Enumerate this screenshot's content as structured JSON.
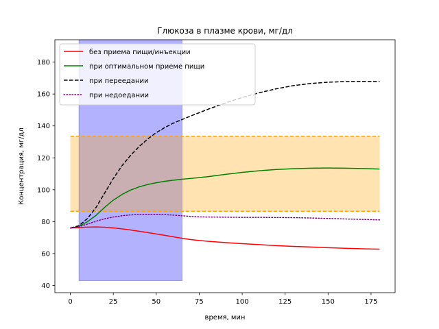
{
  "chart_data": {
    "type": "line",
    "title": "Глюкоза в плазме крови, мг/дл",
    "xlabel": "время, мин",
    "ylabel": "Концентрация, мг/дл",
    "xlim": [
      -9,
      189
    ],
    "ylim": [
      35.5,
      194
    ],
    "xticks": [
      0,
      25,
      50,
      75,
      100,
      125,
      150,
      175
    ],
    "yticks": [
      40,
      60,
      80,
      100,
      120,
      140,
      160,
      180
    ],
    "grid": false,
    "legend_position": "top-left",
    "regions": [
      {
        "kind": "vertical-span",
        "x": [
          5,
          65
        ],
        "y": [
          43,
          194
        ],
        "color": "#0000ff",
        "opacity": 0.3
      },
      {
        "kind": "horizontal-band",
        "x": [
          0,
          180
        ],
        "y": [
          86.5,
          133.5
        ],
        "color": "#ffa500",
        "opacity": 0.3,
        "edge_style": "dashed"
      }
    ],
    "series": [
      {
        "name": "без приема пищи/инъекции",
        "color": "#ff0000",
        "style": "solid",
        "x": [
          0,
          5,
          10,
          15,
          20,
          25,
          30,
          35,
          40,
          45,
          50,
          55,
          60,
          65,
          70,
          75,
          80,
          90,
          100,
          110,
          120,
          130,
          140,
          150,
          160,
          170,
          180
        ],
        "y": [
          76,
          76.3,
          76.6,
          76.7,
          76.5,
          76.1,
          75.5,
          74.8,
          74.0,
          73.2,
          72.3,
          71.4,
          70.5,
          69.6,
          68.8,
          68.2,
          67.7,
          66.9,
          66.2,
          65.6,
          65.0,
          64.5,
          64.1,
          63.7,
          63.3,
          63.0,
          62.8
        ]
      },
      {
        "name": "при оптимальном приеме пищи",
        "color": "#008000",
        "style": "solid",
        "x": [
          0,
          5,
          10,
          15,
          20,
          25,
          30,
          35,
          40,
          45,
          50,
          55,
          60,
          65,
          70,
          75,
          80,
          90,
          100,
          110,
          120,
          130,
          140,
          150,
          160,
          170,
          180
        ],
        "y": [
          76,
          77,
          80,
          84,
          89,
          93.5,
          97,
          99.8,
          101.8,
          103.3,
          104.4,
          105.3,
          106.0,
          106.6,
          107.1,
          107.6,
          108.2,
          109.6,
          110.9,
          111.9,
          112.7,
          113.2,
          113.5,
          113.6,
          113.5,
          113.3,
          113.0
        ]
      },
      {
        "name": "при переедании",
        "color": "#000000",
        "style": "dashed",
        "x": [
          0,
          5,
          10,
          15,
          20,
          25,
          30,
          35,
          40,
          45,
          50,
          55,
          60,
          65,
          70,
          75,
          80,
          90,
          100,
          110,
          120,
          130,
          140,
          150,
          160,
          170,
          180
        ],
        "y": [
          76,
          77.5,
          82,
          89,
          98,
          107,
          115,
          121.5,
          127,
          131.8,
          135.8,
          139.0,
          141.8,
          144.0,
          146.2,
          148.3,
          150.4,
          154.3,
          157.8,
          160.8,
          163.3,
          165.3,
          166.6,
          167.4,
          167.8,
          167.9,
          167.8
        ]
      },
      {
        "name": "при недоедании",
        "color": "#800080",
        "style": "dotted",
        "x": [
          0,
          5,
          10,
          15,
          20,
          25,
          30,
          35,
          40,
          45,
          50,
          55,
          60,
          65,
          70,
          75,
          80,
          90,
          100,
          110,
          120,
          130,
          140,
          150,
          160,
          170,
          180
        ],
        "y": [
          76,
          76.8,
          78.5,
          80.3,
          81.8,
          82.9,
          83.7,
          84.2,
          84.5,
          84.6,
          84.6,
          84.4,
          84.1,
          83.7,
          83.3,
          83.0,
          82.9,
          82.8,
          82.7,
          82.7,
          82.6,
          82.5,
          82.3,
          82.0,
          81.7,
          81.4,
          81.1
        ]
      }
    ]
  }
}
